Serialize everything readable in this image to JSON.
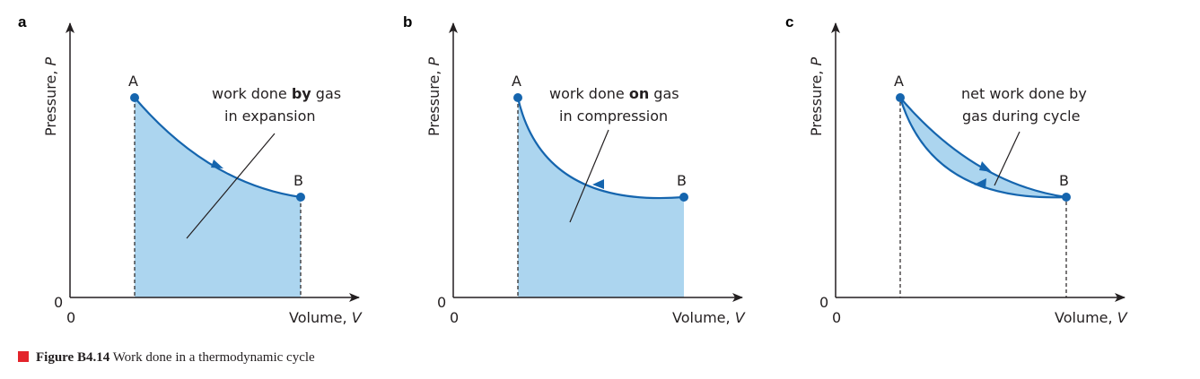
{
  "panels": [
    {
      "label": "a",
      "y_axis_label": "Pressure, ",
      "y_axis_symbol": "P",
      "x_axis_label": "Volume, ",
      "x_axis_symbol": "V",
      "origin_y": "0",
      "origin_x": "0",
      "point_a": "A",
      "point_b": "B",
      "annotation_line1_pre": "work done ",
      "annotation_line1_bold": "by",
      "annotation_line1_post": " gas",
      "annotation_line2": "in expansion"
    },
    {
      "label": "b",
      "y_axis_label": "Pressure, ",
      "y_axis_symbol": "P",
      "x_axis_label": "Volume, ",
      "x_axis_symbol": "V",
      "origin_y": "0",
      "origin_x": "0",
      "point_a": "A",
      "point_b": "B",
      "annotation_line1_pre": "work done ",
      "annotation_line1_bold": "on",
      "annotation_line1_post": " gas",
      "annotation_line2": "in compression"
    },
    {
      "label": "c",
      "y_axis_label": "Pressure, ",
      "y_axis_symbol": "P",
      "x_axis_label": "Volume, ",
      "x_axis_symbol": "V",
      "origin_y": "0",
      "origin_x": "0",
      "point_a": "A",
      "point_b": "B",
      "annotation_line1": "net work done by",
      "annotation_line2": "gas during cycle"
    }
  ],
  "caption": {
    "bold": "Figure B4.14",
    "text": " Work done in a thermodynamic cycle"
  },
  "colors": {
    "curve": "#1565ae",
    "fill": "#acd5ef",
    "axis": "#231f20",
    "caption_marker": "#e3242b"
  }
}
